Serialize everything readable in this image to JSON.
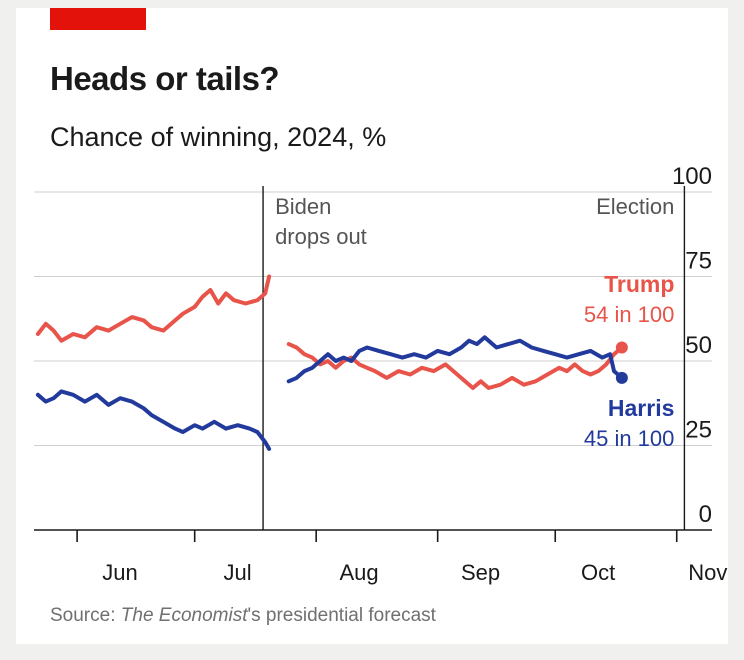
{
  "header": {
    "title": "Heads or tails?",
    "subtitle": "Chance of winning, 2024, %"
  },
  "source": {
    "prefix": "Source: ",
    "italic": "The Economist",
    "suffix": "'s presidential forecast"
  },
  "colors": {
    "accent": "#e3120b",
    "trump": "#e8544a",
    "harris": "#223a9c",
    "gridline": "#cfcfcf",
    "text": "#1a1a1a",
    "muted": "#707070"
  },
  "chart_data": {
    "type": "line",
    "ylim": [
      0,
      100
    ],
    "y_ticks": [
      0,
      25,
      50,
      75,
      100
    ],
    "x_tick_labels": [
      "Jun",
      "Jul",
      "Aug",
      "Sep",
      "Oct",
      "Nov"
    ],
    "xlim": [
      "2024-05-21",
      "2024-11-10"
    ],
    "grid": true,
    "annotations": [
      {
        "date": "2024-07-21",
        "text_lines": [
          "Biden",
          "drops out"
        ]
      },
      {
        "date": "2024-11-05",
        "text_lines": [
          "Election"
        ]
      }
    ],
    "series": [
      {
        "name": "Trump",
        "label_value": "54 in 100",
        "color": "#e8544a",
        "segments": [
          [
            [
              "2024-05-22",
              58
            ],
            [
              "2024-05-24",
              61
            ],
            [
              "2024-05-26",
              59
            ],
            [
              "2024-05-28",
              56
            ],
            [
              "2024-05-31",
              58
            ],
            [
              "2024-06-03",
              57
            ],
            [
              "2024-06-06",
              60
            ],
            [
              "2024-06-09",
              59
            ],
            [
              "2024-06-12",
              61
            ],
            [
              "2024-06-15",
              63
            ],
            [
              "2024-06-18",
              62
            ],
            [
              "2024-06-20",
              60
            ],
            [
              "2024-06-23",
              59
            ],
            [
              "2024-06-26",
              62
            ],
            [
              "2024-06-28",
              64
            ],
            [
              "2024-07-01",
              66
            ],
            [
              "2024-07-03",
              69
            ],
            [
              "2024-07-05",
              71
            ],
            [
              "2024-07-07",
              67
            ],
            [
              "2024-07-09",
              70
            ],
            [
              "2024-07-11",
              68
            ],
            [
              "2024-07-14",
              67
            ],
            [
              "2024-07-17",
              68
            ],
            [
              "2024-07-19",
              70
            ],
            [
              "2024-07-20",
              75
            ]
          ],
          [
            [
              "2024-07-25",
              55
            ],
            [
              "2024-07-27",
              54
            ],
            [
              "2024-07-29",
              52
            ],
            [
              "2024-07-31",
              51
            ],
            [
              "2024-08-02",
              49
            ],
            [
              "2024-08-04",
              50
            ],
            [
              "2024-08-06",
              48
            ],
            [
              "2024-08-08",
              50
            ],
            [
              "2024-08-10",
              51
            ],
            [
              "2024-08-12",
              49
            ],
            [
              "2024-08-14",
              48
            ],
            [
              "2024-08-16",
              47
            ],
            [
              "2024-08-19",
              45
            ],
            [
              "2024-08-22",
              47
            ],
            [
              "2024-08-25",
              46
            ],
            [
              "2024-08-28",
              48
            ],
            [
              "2024-08-31",
              47
            ],
            [
              "2024-09-03",
              49
            ],
            [
              "2024-09-06",
              46
            ],
            [
              "2024-09-08",
              44
            ],
            [
              "2024-09-10",
              42
            ],
            [
              "2024-09-12",
              44
            ],
            [
              "2024-09-14",
              42
            ],
            [
              "2024-09-17",
              43
            ],
            [
              "2024-09-20",
              45
            ],
            [
              "2024-09-23",
              43
            ],
            [
              "2024-09-26",
              44
            ],
            [
              "2024-09-29",
              46
            ],
            [
              "2024-10-02",
              48
            ],
            [
              "2024-10-04",
              47
            ],
            [
              "2024-10-06",
              49
            ],
            [
              "2024-10-08",
              47
            ],
            [
              "2024-10-10",
              46
            ],
            [
              "2024-10-12",
              47
            ],
            [
              "2024-10-14",
              49
            ],
            [
              "2024-10-16",
              52
            ],
            [
              "2024-10-18",
              54
            ]
          ]
        ]
      },
      {
        "name": "Harris",
        "label_value": "45 in 100",
        "color": "#223a9c",
        "segments": [
          [
            [
              "2024-05-22",
              40
            ],
            [
              "2024-05-24",
              38
            ],
            [
              "2024-05-26",
              39
            ],
            [
              "2024-05-28",
              41
            ],
            [
              "2024-05-31",
              40
            ],
            [
              "2024-06-03",
              38
            ],
            [
              "2024-06-06",
              40
            ],
            [
              "2024-06-09",
              37
            ],
            [
              "2024-06-12",
              39
            ],
            [
              "2024-06-15",
              38
            ],
            [
              "2024-06-18",
              36
            ],
            [
              "2024-06-20",
              34
            ],
            [
              "2024-06-23",
              32
            ],
            [
              "2024-06-26",
              30
            ],
            [
              "2024-06-28",
              29
            ],
            [
              "2024-07-01",
              31
            ],
            [
              "2024-07-03",
              30
            ],
            [
              "2024-07-06",
              32
            ],
            [
              "2024-07-09",
              30
            ],
            [
              "2024-07-12",
              31
            ],
            [
              "2024-07-15",
              30
            ],
            [
              "2024-07-17",
              29
            ],
            [
              "2024-07-19",
              26
            ],
            [
              "2024-07-20",
              24
            ]
          ],
          [
            [
              "2024-07-25",
              44
            ],
            [
              "2024-07-27",
              45
            ],
            [
              "2024-07-29",
              47
            ],
            [
              "2024-07-31",
              48
            ],
            [
              "2024-08-02",
              50
            ],
            [
              "2024-08-04",
              52
            ],
            [
              "2024-08-06",
              50
            ],
            [
              "2024-08-08",
              51
            ],
            [
              "2024-08-10",
              50
            ],
            [
              "2024-08-12",
              53
            ],
            [
              "2024-08-14",
              54
            ],
            [
              "2024-08-17",
              53
            ],
            [
              "2024-08-20",
              52
            ],
            [
              "2024-08-23",
              51
            ],
            [
              "2024-08-26",
              52
            ],
            [
              "2024-08-29",
              51
            ],
            [
              "2024-09-01",
              53
            ],
            [
              "2024-09-04",
              52
            ],
            [
              "2024-09-07",
              54
            ],
            [
              "2024-09-09",
              56
            ],
            [
              "2024-09-11",
              55
            ],
            [
              "2024-09-13",
              57
            ],
            [
              "2024-09-16",
              54
            ],
            [
              "2024-09-19",
              55
            ],
            [
              "2024-09-22",
              56
            ],
            [
              "2024-09-25",
              54
            ],
            [
              "2024-09-28",
              53
            ],
            [
              "2024-10-01",
              52
            ],
            [
              "2024-10-04",
              51
            ],
            [
              "2024-10-07",
              52
            ],
            [
              "2024-10-10",
              53
            ],
            [
              "2024-10-13",
              51
            ],
            [
              "2024-10-15",
              52
            ],
            [
              "2024-10-16",
              47
            ],
            [
              "2024-10-18",
              45
            ]
          ]
        ]
      }
    ]
  }
}
